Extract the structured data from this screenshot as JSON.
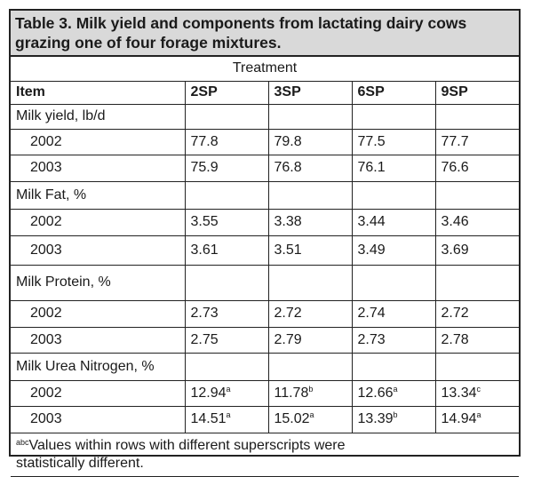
{
  "title": {
    "line1": "Table 3.  Milk yield and components from lactating dairy cows",
    "line2": "grazing one of four forage mixtures."
  },
  "treatment_label": "Treatment",
  "columns": [
    "Item",
    "2SP",
    "3SP",
    "6SP",
    "9SP"
  ],
  "groups": [
    {
      "label": "Milk yield, lb/d",
      "rows": [
        {
          "year": "2002",
          "cells": [
            {
              "v": "77.8",
              "s": ""
            },
            {
              "v": "79.8",
              "s": ""
            },
            {
              "v": "77.5",
              "s": ""
            },
            {
              "v": "77.7",
              "s": ""
            }
          ]
        },
        {
          "year": "2003",
          "cells": [
            {
              "v": "75.9",
              "s": ""
            },
            {
              "v": "76.8",
              "s": ""
            },
            {
              "v": "76.1",
              "s": ""
            },
            {
              "v": "76.6",
              "s": ""
            }
          ]
        }
      ]
    },
    {
      "label": "Milk Fat, %",
      "rows": [
        {
          "year": "2002",
          "cells": [
            {
              "v": "3.55",
              "s": ""
            },
            {
              "v": "3.38",
              "s": ""
            },
            {
              "v": "3.44",
              "s": ""
            },
            {
              "v": "3.46",
              "s": ""
            }
          ]
        },
        {
          "year": "2003",
          "cells": [
            {
              "v": "3.61",
              "s": ""
            },
            {
              "v": "3.51",
              "s": ""
            },
            {
              "v": "3.49",
              "s": ""
            },
            {
              "v": "3.69",
              "s": ""
            }
          ]
        }
      ]
    },
    {
      "label": "Milk Protein, %",
      "rows": [
        {
          "year": "2002",
          "cells": [
            {
              "v": "2.73",
              "s": ""
            },
            {
              "v": "2.72",
              "s": ""
            },
            {
              "v": "2.74",
              "s": ""
            },
            {
              "v": "2.72",
              "s": ""
            }
          ]
        },
        {
          "year": "2003",
          "cells": [
            {
              "v": "2.75",
              "s": ""
            },
            {
              "v": "2.79",
              "s": ""
            },
            {
              "v": "2.73",
              "s": ""
            },
            {
              "v": "2.78",
              "s": ""
            }
          ]
        }
      ]
    },
    {
      "label": "Milk Urea Nitrogen, %",
      "rows": [
        {
          "year": "2002",
          "cells": [
            {
              "v": "12.94",
              "s": "a"
            },
            {
              "v": "11.78",
              "s": "b"
            },
            {
              "v": "12.66",
              "s": "a"
            },
            {
              "v": "13.34",
              "s": "c"
            }
          ]
        },
        {
          "year": "2003",
          "cells": [
            {
              "v": "14.51",
              "s": "a"
            },
            {
              "v": "15.02",
              "s": "a"
            },
            {
              "v": "13.39",
              "s": "b"
            },
            {
              "v": "14.94",
              "s": "a"
            }
          ]
        }
      ]
    }
  ],
  "footnote": {
    "marker": "abc",
    "line1": "Values within rows with different superscripts were",
    "line2": "statistically different."
  }
}
